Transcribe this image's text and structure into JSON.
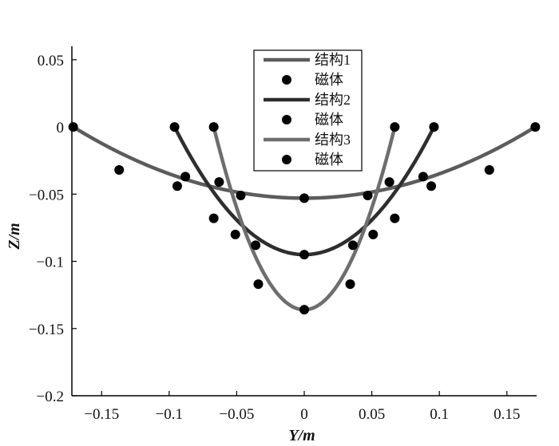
{
  "chart_data": {
    "type": "line",
    "xlabel": "Y/m",
    "ylabel": "Z/m",
    "xlim": [
      -0.172,
      0.172
    ],
    "ylim": [
      -0.2,
      0.06
    ],
    "xticks": [
      -0.15,
      -0.1,
      -0.05,
      0,
      0.05,
      0.1,
      0.15
    ],
    "xtick_labels": [
      "−0.15",
      "−0.1",
      "−0.05",
      "0",
      "0.05",
      "0.1",
      "0.15"
    ],
    "yticks": [
      0.05,
      0,
      -0.05,
      -0.1,
      -0.15,
      -0.2
    ],
    "ytick_labels": [
      "0.05",
      "0",
      "−0.05",
      "−0.1",
      "−0.15",
      "−0.2"
    ],
    "grid": false,
    "legend_position": "top-center",
    "series": [
      {
        "name": "结构1",
        "kind": "curve",
        "color": "#5c5c5c",
        "half_width": 0.171,
        "depth": 0.053,
        "x": [
          -0.171,
          -0.137,
          -0.094,
          -0.047,
          0,
          0.047,
          0.094,
          0.137,
          0.171
        ],
        "y": [
          0,
          -0.032,
          -0.044,
          -0.051,
          -0.053,
          -0.051,
          -0.044,
          -0.032,
          0
        ]
      },
      {
        "name": "磁体",
        "kind": "markers",
        "color": "#000000",
        "x": [
          -0.171,
          -0.137,
          -0.094,
          -0.047,
          0,
          0.047,
          0.094,
          0.137,
          0.171
        ],
        "y": [
          0,
          -0.032,
          -0.044,
          -0.051,
          -0.053,
          -0.051,
          -0.044,
          -0.032,
          0
        ]
      },
      {
        "name": "结构2",
        "kind": "curve",
        "color": "#2e2e2e",
        "half_width": 0.096,
        "depth": 0.095,
        "x": [
          -0.096,
          -0.088,
          -0.067,
          -0.036,
          0,
          0.036,
          0.067,
          0.088,
          0.096
        ],
        "y": [
          0,
          -0.037,
          -0.068,
          -0.088,
          -0.095,
          -0.088,
          -0.068,
          -0.037,
          0
        ]
      },
      {
        "name": "磁体",
        "kind": "markers",
        "color": "#000000",
        "x": [
          -0.096,
          -0.088,
          -0.067,
          -0.036,
          0,
          0.036,
          0.067,
          0.088,
          0.096
        ],
        "y": [
          0,
          -0.037,
          -0.068,
          -0.088,
          -0.095,
          -0.088,
          -0.068,
          -0.037,
          0
        ]
      },
      {
        "name": "结构3",
        "kind": "curve",
        "color": "#6e6e6e",
        "half_width": 0.067,
        "depth": 0.136,
        "x": [
          -0.067,
          -0.063,
          -0.051,
          -0.034,
          0,
          0.034,
          0.051,
          0.063,
          0.067
        ],
        "y": [
          0,
          -0.041,
          -0.08,
          -0.117,
          -0.136,
          -0.117,
          -0.08,
          -0.041,
          0
        ]
      },
      {
        "name": "磁体",
        "kind": "markers",
        "color": "#000000",
        "x": [
          -0.067,
          -0.063,
          -0.051,
          -0.034,
          0,
          0.034,
          0.051,
          0.063,
          0.067
        ],
        "y": [
          0,
          -0.041,
          -0.08,
          -0.117,
          -0.136,
          -0.117,
          -0.08,
          -0.041,
          0
        ]
      }
    ]
  }
}
